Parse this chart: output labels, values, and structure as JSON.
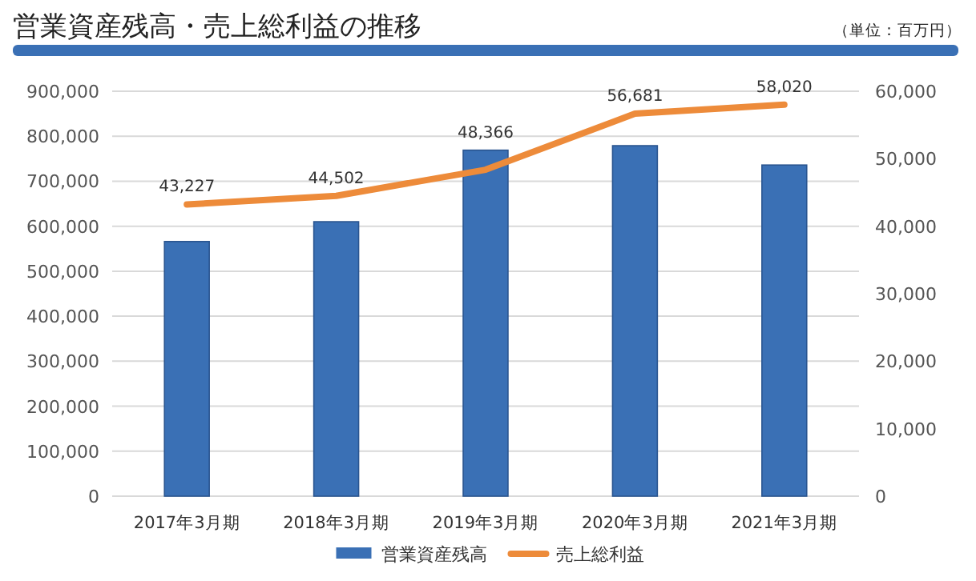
{
  "chart_data": {
    "type": "bar",
    "title": "営業資産残高・売上総利益の推移",
    "annotations": [
      "（単位：百万円）"
    ],
    "categories": [
      "2017年3月期",
      "2018年3月期",
      "2019年3月期",
      "2020年3月期",
      "2021年3月期"
    ],
    "series": [
      {
        "name": "営業資産残高",
        "color": "#3a70b5",
        "values": [
          566000,
          610000,
          769000,
          779000,
          736000
        ]
      },
      {
        "name": "売上総利益",
        "type": "line",
        "axis": "y2",
        "color": "#ed8b3a",
        "values": [
          43227,
          44502,
          48366,
          56681,
          58020
        ],
        "value_labels": [
          "43,227",
          "44,502",
          "48,366",
          "56,681",
          "58,020"
        ]
      }
    ],
    "ylim": [
      0,
      900000
    ],
    "yticks": [
      {
        "value": 0,
        "label": "0"
      },
      {
        "value": 100000,
        "label": "100,000"
      },
      {
        "value": 200000,
        "label": "200,000"
      },
      {
        "value": 300000,
        "label": "300,000"
      },
      {
        "value": 400000,
        "label": "400,000"
      },
      {
        "value": 500000,
        "label": "500,000"
      },
      {
        "value": 600000,
        "label": "600,000"
      },
      {
        "value": 700000,
        "label": "700,000"
      },
      {
        "value": 800000,
        "label": "800,000"
      },
      {
        "value": 900000,
        "label": "900,000"
      }
    ],
    "y2lim": [
      0,
      60000
    ],
    "y2ticks": [
      {
        "value": 0,
        "label": "0"
      },
      {
        "value": 10000,
        "label": "10,000"
      },
      {
        "value": 20000,
        "label": "20,000"
      },
      {
        "value": 30000,
        "label": "30,000"
      },
      {
        "value": 40000,
        "label": "40,000"
      },
      {
        "value": 50000,
        "label": "50,000"
      },
      {
        "value": 60000,
        "label": "60,000"
      }
    ],
    "grid": "y",
    "legend": "bottom",
    "marker": "none",
    "line_style": "solid"
  }
}
